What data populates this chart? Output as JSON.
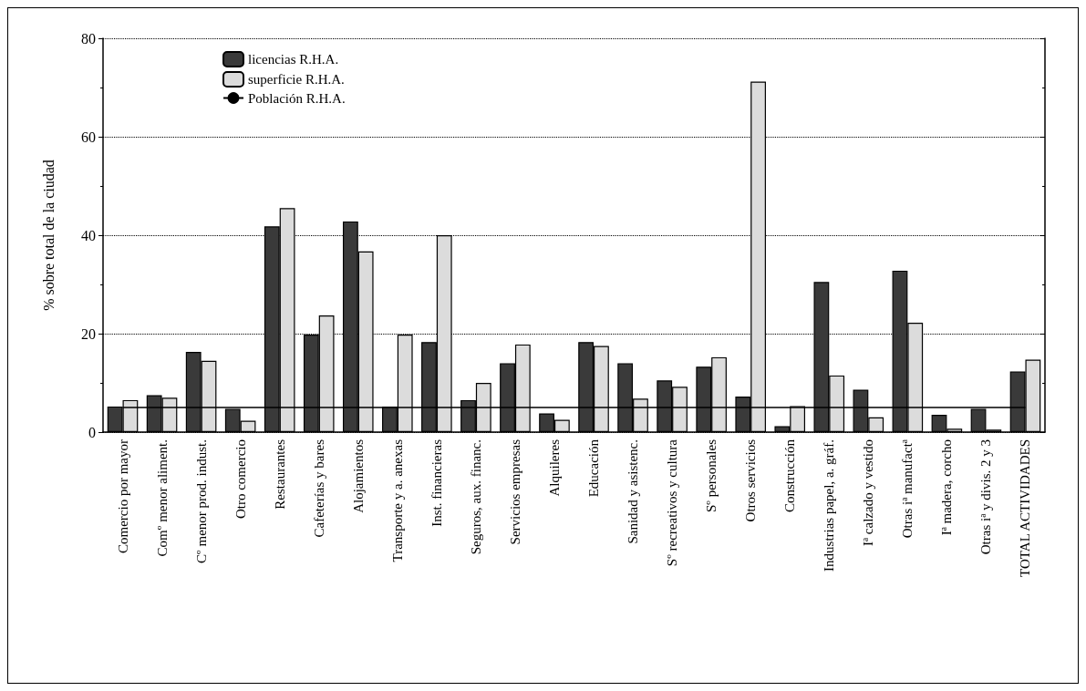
{
  "chart_data": {
    "type": "bar",
    "ylabel": "% sobre total de la ciudad",
    "categories": [
      "Comercio por mayor",
      "Comº menor aliment.",
      "Cº menor prod. indust.",
      "Otro comercio",
      "Restaurantes",
      "Cafeterías y bares",
      "Alojamientos",
      "Transporte y a. anexas",
      "Inst. financieras",
      "Seguros, aux. financ.",
      "Servicios empresas",
      "Alquileres",
      "Educación",
      "Sanidad y asistenc.",
      "Sº recreativos y cultura",
      "Sº personales",
      "Otros servicios",
      "Construcción",
      "Industrias papel, a. gráf.",
      "Iª calzado y vestido",
      "Otras iª manufactª",
      "Iª madera, corcho",
      "Otras iª y divis. 2 y 3",
      "TOTAL ACTIVIDADES"
    ],
    "series": [
      {
        "name": "licencias R.H.A.",
        "color": "#3a3a3a",
        "values": [
          5.2,
          7.5,
          16.3,
          4.7,
          41.8,
          19.8,
          42.8,
          5.2,
          18.3,
          6.5,
          14,
          3.8,
          18.3,
          14,
          10.5,
          13.3,
          7.2,
          1.2,
          30.5,
          8.6,
          32.8,
          3.5,
          4.7,
          12.3
        ]
      },
      {
        "name": "superficie R.H.A.",
        "color": "#dcdcdc",
        "values": [
          6.5,
          7,
          14.5,
          2.3,
          45.5,
          23.7,
          36.7,
          19.8,
          40,
          10,
          17.8,
          2.5,
          17.5,
          6.8,
          9.2,
          15.2,
          71.2,
          5.3,
          11.5,
          3,
          22.2,
          0.7,
          0.5,
          14.7
        ]
      },
      {
        "name": "Población R.H.A.",
        "type": "line",
        "color": "#000000",
        "values": [
          5,
          5,
          5,
          5,
          5,
          5,
          5,
          5,
          5,
          5,
          5,
          5,
          5,
          5,
          5,
          5,
          5,
          5,
          5,
          5,
          5,
          5,
          5,
          5
        ]
      }
    ],
    "ylim": [
      0,
      80
    ],
    "yticks": [
      0,
      20,
      40,
      60,
      80
    ],
    "grid": "y",
    "legend": "top left",
    "marker": "none",
    "line_style": "solid"
  }
}
